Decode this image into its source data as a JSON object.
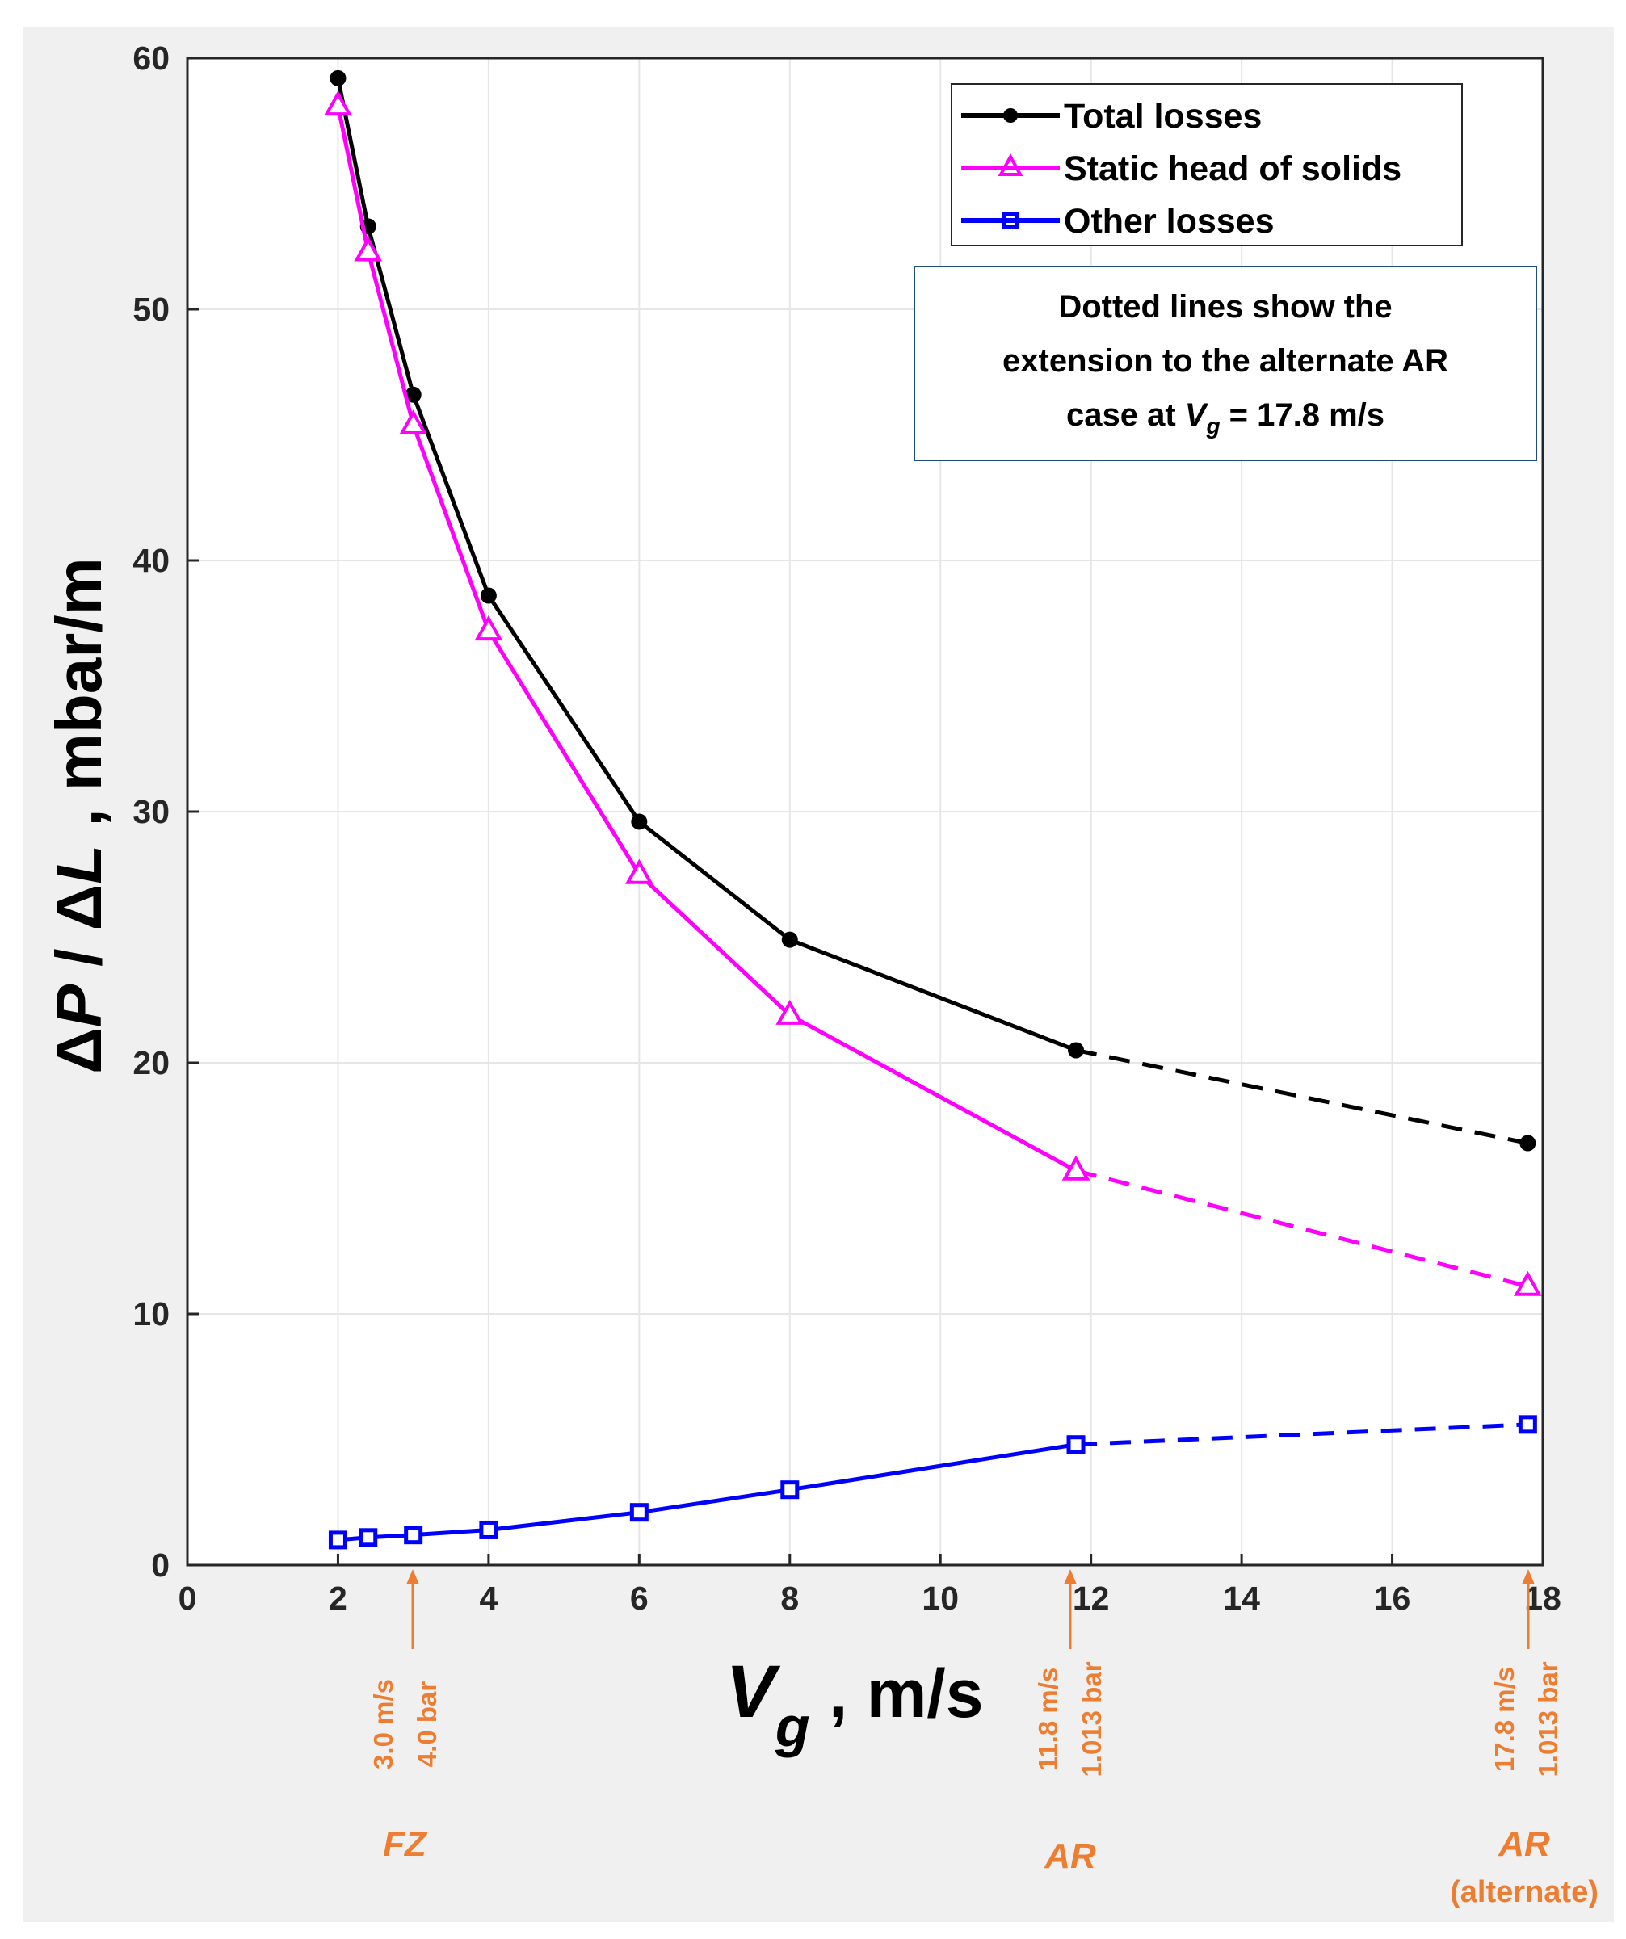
{
  "chart_data": {
    "type": "line",
    "title": "",
    "xlabel": "V_g , m/s",
    "xlabel_parts": {
      "var": "V",
      "sub": "g",
      "rest": " , m/s"
    },
    "ylabel": "ΔP / ΔL , mbar/m",
    "ylabel_parts": {
      "d1": "Δ",
      "p": "P",
      "slash": " / ",
      "d2": "Δ",
      "l": "L",
      "rest": " ,  mbar/m"
    },
    "xlim": [
      0,
      18
    ],
    "ylim": [
      0,
      60
    ],
    "xticks": [
      0,
      2,
      4,
      6,
      8,
      10,
      12,
      14,
      16,
      18
    ],
    "yticks": [
      0,
      10,
      20,
      30,
      40,
      50,
      60
    ],
    "grid": true,
    "legend_position": "top-right",
    "series": [
      {
        "name": "Total losses",
        "color": "#000000",
        "marker": "circle",
        "x": [
          2.0,
          2.4,
          3.0,
          4.0,
          6.0,
          8.0,
          11.8
        ],
        "y": [
          59.2,
          53.3,
          46.6,
          38.6,
          29.6,
          24.9,
          20.5
        ],
        "extension": {
          "x": [
            11.8,
            17.8
          ],
          "y": [
            20.5,
            16.8
          ]
        }
      },
      {
        "name": "Static head of solids",
        "color": "#FF00FF",
        "marker": "triangle",
        "x": [
          2.0,
          2.4,
          3.0,
          4.0,
          6.0,
          8.0,
          11.8
        ],
        "y": [
          58.1,
          52.3,
          45.4,
          37.2,
          27.5,
          21.9,
          15.7
        ],
        "extension": {
          "x": [
            11.8,
            17.8
          ],
          "y": [
            15.7,
            11.1
          ]
        }
      },
      {
        "name": "Other losses",
        "color": "#0000FF",
        "marker": "square",
        "x": [
          2.0,
          2.4,
          3.0,
          4.0,
          6.0,
          8.0,
          11.8
        ],
        "y": [
          1.0,
          1.1,
          1.2,
          1.4,
          2.1,
          3.0,
          4.8
        ],
        "extension": {
          "x": [
            11.8,
            17.8
          ],
          "y": [
            4.8,
            5.6
          ]
        }
      }
    ],
    "note": {
      "line1": "Dotted lines show the",
      "line2": "extension to the alternate AR",
      "line3_pre": "case at ",
      "line3_var": "V",
      "line3_sub": "g",
      "line3_post": " = 17.8 m/s"
    },
    "annotations": [
      {
        "x": 3.0,
        "speed": "3.0  m/s",
        "pressure": "4.0 bar",
        "label": "FZ",
        "sublabel": ""
      },
      {
        "x": 11.8,
        "speed": "11.8  m/s",
        "pressure": "1.013 bar",
        "label": "AR",
        "sublabel": ""
      },
      {
        "x": 17.8,
        "speed": "17.8  m/s",
        "pressure": "1.013 bar",
        "label": "AR",
        "sublabel": "(alternate)"
      }
    ],
    "annotation_color": "#ED7D31"
  }
}
